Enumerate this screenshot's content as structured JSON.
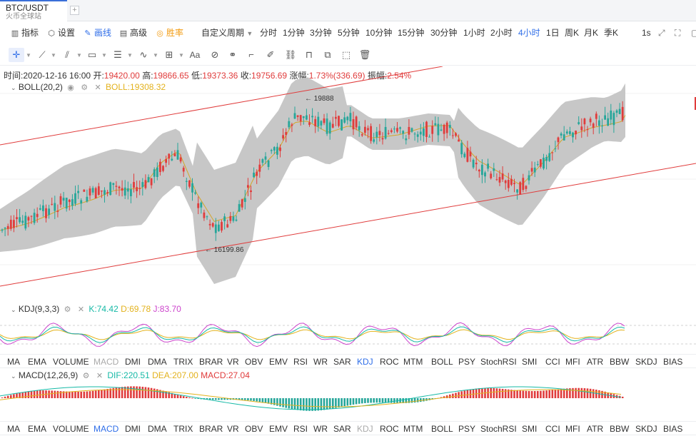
{
  "tab": {
    "symbol": "BTC/USDT",
    "exchange": "火币全球站",
    "add": "+"
  },
  "toolbar": {
    "indicators": "指标",
    "settings": "设置",
    "draw": "画线",
    "advanced": "高级",
    "winrate": "胜率",
    "custom_period": "自定义周期",
    "periods": [
      "分时",
      "1分钟",
      "3分钟",
      "5分钟",
      "10分钟",
      "15分钟",
      "30分钟",
      "1小时",
      "2小时",
      "4小时",
      "1日",
      "周K",
      "月K",
      "季K"
    ],
    "active_period": "4小时",
    "refresh": "1s"
  },
  "colors": {
    "up": "#e03c3c",
    "down": "#26a69a",
    "accent": "#2f6ee8",
    "boll_band": "#c4c4c4",
    "mid": "#d3a62a"
  },
  "ohlc": {
    "time_label": "时间:",
    "time": "2020-12-16 16:00",
    "open_label": "开:",
    "open": "19420.00",
    "high_label": "高:",
    "high": "19866.65",
    "low_label": "低:",
    "low": "19373.36",
    "close_label": "收:",
    "close": "19756.69",
    "change_label": "涨幅:",
    "change": "1.73%(336.69)",
    "amp_label": "振幅:",
    "amp": "2.54%"
  },
  "boll": {
    "name": "BOLL(20,2)",
    "value_label": "BOLL:",
    "value": "19308.32",
    "max_label": "← 19888",
    "min_label": "← 16199.86"
  },
  "kdj": {
    "name": "KDJ(9,3,3)",
    "k": "K:74.42",
    "d": "D:69.78",
    "j": "J:83.70"
  },
  "macd": {
    "name": "MACD(12,26,9)",
    "dif": "DIF:220.51",
    "dea": "DEA:207.00",
    "macd": "MACD:27.04"
  },
  "indicator_bar_1": [
    "MA",
    "EMA",
    "VOLUME",
    "MACD",
    "DMI",
    "DMA",
    "TRIX",
    "BRAR",
    "VR",
    "OBV",
    "EMV",
    "RSI",
    "WR",
    "SAR",
    "KDJ",
    "ROC",
    "MTM",
    "BOLL",
    "PSY",
    "StochRSI",
    "SMI",
    "CCI",
    "MFI",
    "ATR",
    "BBW",
    "SKDJ",
    "BIAS"
  ],
  "indicator_bar_2": [
    "MA",
    "EMA",
    "VOLUME",
    "MACD",
    "DMI",
    "DMA",
    "TRIX",
    "BRAR",
    "VR",
    "OBV",
    "EMV",
    "RSI",
    "WR",
    "SAR",
    "KDJ",
    "ROC",
    "MTM",
    "BOLL",
    "PSY",
    "StochRSI",
    "SMI",
    "CCI",
    "MFI",
    "ATR",
    "BBW",
    "SKDJ",
    "BIAS"
  ],
  "icons": {
    "indicators": "bar-chart-icon",
    "settings": "hexagon-gear-icon",
    "draw": "pencil-icon",
    "advanced": "briefcase-icon",
    "winrate": "target-icon"
  }
}
